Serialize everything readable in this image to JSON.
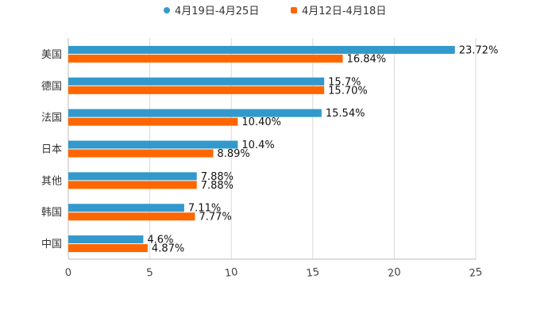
{
  "chart_data": {
    "type": "bar",
    "orientation": "horizontal",
    "categories": [
      "美国",
      "德国",
      "法国",
      "日本",
      "其他",
      "韩国",
      "中国"
    ],
    "series": [
      {
        "name": "4月19日-4月25日",
        "color": "#3399CC",
        "values": [
          23.72,
          15.7,
          15.54,
          10.4,
          7.88,
          7.11,
          4.6
        ],
        "labels": [
          "23.72%",
          "15.7%",
          "15.54%",
          "10.4%",
          "7.88%",
          "7.11%",
          "4.6%"
        ]
      },
      {
        "name": "4月12日-4月18日",
        "color": "#FF6600",
        "values": [
          16.84,
          15.7,
          10.4,
          8.89,
          7.88,
          7.77,
          4.87
        ],
        "labels": [
          "16.84%",
          "15.70%",
          "10.40%",
          "8.89%",
          "7.88%",
          "7.77%",
          "4.87%"
        ]
      }
    ],
    "xlim": [
      0,
      25
    ],
    "xticks": [
      "0",
      "5",
      "10",
      "15",
      "20",
      "25"
    ],
    "grid": true,
    "legend_position": "top-center",
    "title": "",
    "xlabel": "",
    "ylabel": ""
  }
}
